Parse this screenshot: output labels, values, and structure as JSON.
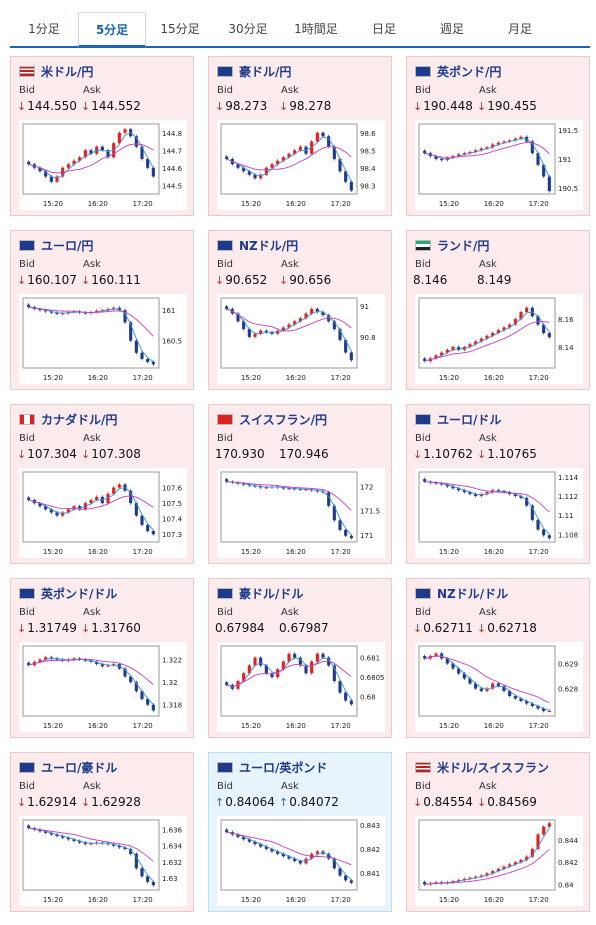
{
  "tabs": [
    "1分足",
    "5分足",
    "15分足",
    "30分足",
    "1時間足",
    "日足",
    "週足",
    "月足"
  ],
  "active_tab": 1,
  "labels": {
    "bid": "Bid",
    "ask": "Ask"
  },
  "colors": {
    "up_candle": "#d22",
    "down_candle": "#1e3a8a",
    "ma_short": "#3a8fd8",
    "ma_long": "#c040c0",
    "accent": "#1a64b8"
  },
  "pairs": [
    {
      "name": "米ドル/円",
      "flag": "us-jp-flag",
      "bid": "144.550",
      "ask": "144.552",
      "dir": "down",
      "yticks": [
        "144.8",
        "144.7",
        "144.6",
        "144.5"
      ],
      "xticks": [
        "15:20",
        "16:20",
        "17:20"
      ]
    },
    {
      "name": "豪ドル/円",
      "flag": "au-jp-flag",
      "bid": "98.273",
      "ask": "98.278",
      "dir": "down",
      "yticks": [
        "98.6",
        "98.5",
        "98.4",
        "98.3"
      ],
      "xticks": [
        "15:20",
        "16:20",
        "17:20"
      ]
    },
    {
      "name": "英ポンド/円",
      "flag": "gb-jp-flag",
      "bid": "190.448",
      "ask": "190.455",
      "dir": "down",
      "yticks": [
        "191.5",
        "191",
        "190.5"
      ],
      "xticks": [
        "15:20",
        "16:20",
        "17:20"
      ]
    },
    {
      "name": "ユーロ/円",
      "flag": "eu-jp-flag",
      "bid": "160.107",
      "ask": "160.111",
      "dir": "down",
      "yticks": [
        "161",
        "160.5"
      ],
      "xticks": [
        "15:20",
        "16:20",
        "17:20"
      ]
    },
    {
      "name": "NZドル/円",
      "flag": "nz-jp-flag",
      "bid": "90.652",
      "ask": "90.656",
      "dir": "down",
      "yticks": [
        "91",
        "90.8"
      ],
      "xticks": [
        "15:20",
        "16:20",
        "17:20"
      ]
    },
    {
      "name": "ランド/円",
      "flag": "za-jp-flag",
      "bid": "8.146",
      "ask": "8.149",
      "dir": "none",
      "yticks": [
        "8.16",
        "8.14"
      ],
      "xticks": [
        "15:20",
        "16:20",
        "17:20"
      ]
    },
    {
      "name": "カナダドル/円",
      "flag": "ca-jp-flag",
      "bid": "107.304",
      "ask": "107.308",
      "dir": "down",
      "yticks": [
        "107.6",
        "107.5",
        "107.4",
        "107.3"
      ],
      "xticks": [
        "15:20",
        "16:20",
        "17:20"
      ]
    },
    {
      "name": "スイスフラン/円",
      "flag": "ch-jp-flag",
      "bid": "170.930",
      "ask": "170.946",
      "dir": "none",
      "yticks": [
        "172",
        "171.5",
        "171"
      ],
      "xticks": [
        "15:20",
        "16:20",
        "17:20"
      ]
    },
    {
      "name": "ユーロ/ドル",
      "flag": "eu-us-flag",
      "bid": "1.10762",
      "ask": "1.10765",
      "dir": "down",
      "yticks": [
        "1.114",
        "1.112",
        "1.11",
        "1.108"
      ],
      "xticks": [
        "15:20",
        "16:20",
        "17:20"
      ]
    },
    {
      "name": "英ポンド/ドル",
      "flag": "gb-us-flag",
      "bid": "1.31749",
      "ask": "1.31760",
      "dir": "down",
      "yticks": [
        "1.322",
        "1.32",
        "1.318"
      ],
      "xticks": [
        "15:20",
        "16:20",
        "17:20"
      ]
    },
    {
      "name": "豪ドル/ドル",
      "flag": "au-us-flag",
      "bid": "0.67984",
      "ask": "0.67987",
      "dir": "none",
      "yticks": [
        "0.681",
        "0.6805",
        "0.68"
      ],
      "xticks": [
        "15:20",
        "16:20",
        "17:20"
      ]
    },
    {
      "name": "NZドル/ドル",
      "flag": "nz-us-flag",
      "bid": "0.62711",
      "ask": "0.62718",
      "dir": "down",
      "yticks": [
        "0.629",
        "0.628"
      ],
      "xticks": [
        "15:20",
        "16:20",
        "17:20"
      ]
    },
    {
      "name": "ユーロ/豪ドル",
      "flag": "eu-au-flag",
      "bid": "1.62914",
      "ask": "1.62928",
      "dir": "down",
      "yticks": [
        "1.636",
        "1.634",
        "1.632",
        "1.63"
      ],
      "xticks": [
        "15:20",
        "16:20",
        "17:20"
      ]
    },
    {
      "name": "ユーロ/英ポンド",
      "flag": "eu-gb-flag",
      "bid": "0.84064",
      "ask": "0.84072",
      "dir": "up",
      "yticks": [
        "0.843",
        "0.842",
        "0.841"
      ],
      "xticks": [
        "15:20",
        "16:20",
        "17:20"
      ]
    },
    {
      "name": "米ドル/スイスフラン",
      "flag": "us-ch-flag",
      "bid": "0.84554",
      "ask": "0.84569",
      "dir": "down",
      "yticks": [
        "0.844",
        "0.842",
        "0.84"
      ],
      "xticks": [
        "15:20",
        "16:20",
        "17:20"
      ]
    }
  ],
  "arrows": {
    "down": "↓",
    "up": "↑"
  },
  "chart_data": [
    {
      "type": "candlestick",
      "pair": "米ドル/円",
      "ylim": [
        144.45,
        144.85
      ],
      "close": [
        144.62,
        144.6,
        144.58,
        144.55,
        144.52,
        144.55,
        144.6,
        144.62,
        144.64,
        144.66,
        144.7,
        144.68,
        144.72,
        144.7,
        144.66,
        144.74,
        144.8,
        144.82,
        144.78,
        144.72,
        144.65,
        144.6,
        144.55
      ]
    },
    {
      "type": "candlestick",
      "pair": "豪ドル/円",
      "ylim": [
        98.25,
        98.65
      ],
      "close": [
        98.45,
        98.42,
        98.4,
        98.38,
        98.36,
        98.34,
        98.36,
        98.4,
        98.42,
        98.44,
        98.46,
        98.48,
        98.5,
        98.52,
        98.48,
        98.55,
        98.6,
        98.58,
        98.52,
        98.45,
        98.38,
        98.32,
        98.27
      ]
    },
    {
      "type": "candlestick",
      "pair": "英ポンド/円",
      "ylim": [
        190.4,
        191.6
      ],
      "close": [
        191.1,
        191.05,
        191.0,
        190.98,
        191.02,
        191.05,
        191.08,
        191.1,
        191.12,
        191.15,
        191.18,
        191.2,
        191.25,
        191.28,
        191.3,
        191.32,
        191.35,
        191.38,
        191.3,
        191.1,
        190.9,
        190.7,
        190.45
      ]
    },
    {
      "type": "candlestick",
      "pair": "ユーロ/円",
      "ylim": [
        160.05,
        161.2
      ],
      "close": [
        161.05,
        161.02,
        161.0,
        160.98,
        160.96,
        160.94,
        160.95,
        160.97,
        160.98,
        160.96,
        160.95,
        160.97,
        160.99,
        161.0,
        161.02,
        161.04,
        161.0,
        160.8,
        160.5,
        160.3,
        160.2,
        160.15,
        160.11
      ]
    },
    {
      "type": "candlestick",
      "pair": "NZドル/円",
      "ylim": [
        90.6,
        91.05
      ],
      "close": [
        90.98,
        90.95,
        90.9,
        90.85,
        90.8,
        90.82,
        90.84,
        90.83,
        90.82,
        90.84,
        90.86,
        90.88,
        90.9,
        90.92,
        90.95,
        90.98,
        90.96,
        90.94,
        90.9,
        90.85,
        90.78,
        90.7,
        90.65
      ]
    },
    {
      "type": "candlestick",
      "pair": "ランド/円",
      "ylim": [
        8.125,
        8.175
      ],
      "close": [
        8.13,
        8.132,
        8.134,
        8.136,
        8.138,
        8.14,
        8.138,
        8.14,
        8.142,
        8.144,
        8.146,
        8.148,
        8.15,
        8.152,
        8.154,
        8.156,
        8.16,
        8.165,
        8.168,
        8.162,
        8.156,
        8.15,
        8.147
      ]
    },
    {
      "type": "candlestick",
      "pair": "カナダドル/円",
      "ylim": [
        107.25,
        107.7
      ],
      "close": [
        107.52,
        107.5,
        107.48,
        107.46,
        107.44,
        107.42,
        107.44,
        107.46,
        107.48,
        107.46,
        107.5,
        107.52,
        107.54,
        107.5,
        107.56,
        107.6,
        107.62,
        107.58,
        107.5,
        107.42,
        107.36,
        107.32,
        107.3
      ]
    },
    {
      "type": "candlestick",
      "pair": "スイスフラン/円",
      "ylim": [
        170.85,
        172.3
      ],
      "close": [
        172.1,
        172.08,
        172.06,
        172.04,
        172.02,
        172.0,
        171.98,
        171.98,
        172.0,
        171.98,
        171.96,
        171.96,
        171.95,
        171.94,
        171.94,
        171.92,
        171.9,
        171.88,
        171.6,
        171.3,
        171.1,
        170.98,
        170.93
      ]
    },
    {
      "type": "candlestick",
      "pair": "ユーロ/ドル",
      "ylim": [
        1.1072,
        1.1145
      ],
      "close": [
        1.1135,
        1.1134,
        1.1133,
        1.1132,
        1.113,
        1.1128,
        1.1126,
        1.1124,
        1.1122,
        1.112,
        1.1122,
        1.1124,
        1.1126,
        1.1125,
        1.1124,
        1.1122,
        1.112,
        1.1118,
        1.111,
        1.1095,
        1.1085,
        1.1079,
        1.1076
      ]
    },
    {
      "type": "candlestick",
      "pair": "英ポンド/ドル",
      "ylim": [
        1.317,
        1.3232
      ],
      "close": [
        1.3215,
        1.3218,
        1.322,
        1.3222,
        1.3221,
        1.322,
        1.3219,
        1.322,
        1.3221,
        1.322,
        1.3219,
        1.3218,
        1.3216,
        1.3214,
        1.3215,
        1.3216,
        1.3212,
        1.3205,
        1.32,
        1.3192,
        1.3185,
        1.318,
        1.3175
      ]
    },
    {
      "type": "candlestick",
      "pair": "豪ドル/ドル",
      "ylim": [
        0.6795,
        0.6813
      ],
      "close": [
        0.6803,
        0.6802,
        0.6804,
        0.6806,
        0.6808,
        0.681,
        0.6808,
        0.6806,
        0.6805,
        0.6807,
        0.6809,
        0.6811,
        0.681,
        0.6808,
        0.6806,
        0.6809,
        0.6811,
        0.681,
        0.6808,
        0.6804,
        0.6801,
        0.6799,
        0.6798
      ]
    },
    {
      "type": "candlestick",
      "pair": "NZドル/ドル",
      "ylim": [
        0.6269,
        0.6297
      ],
      "close": [
        0.6292,
        0.6293,
        0.6294,
        0.6292,
        0.629,
        0.6288,
        0.6286,
        0.6284,
        0.6282,
        0.628,
        0.6279,
        0.628,
        0.6282,
        0.6281,
        0.6279,
        0.6277,
        0.6276,
        0.6275,
        0.6274,
        0.6273,
        0.6272,
        0.6271,
        0.6271
      ]
    },
    {
      "type": "candlestick",
      "pair": "ユーロ/豪ドル",
      "ylim": [
        1.6285,
        1.6372
      ],
      "close": [
        1.6362,
        1.636,
        1.6358,
        1.6356,
        1.6354,
        1.6352,
        1.635,
        1.6348,
        1.6346,
        1.6344,
        1.6342,
        1.6343,
        1.6344,
        1.6343,
        1.6342,
        1.634,
        1.6338,
        1.6336,
        1.633,
        1.6312,
        1.6302,
        1.6295,
        1.6291
      ]
    },
    {
      "type": "candlestick",
      "pair": "ユーロ/英ポンド",
      "ylim": [
        0.8403,
        0.8432
      ],
      "close": [
        0.8427,
        0.8426,
        0.8425,
        0.8424,
        0.8423,
        0.8422,
        0.8421,
        0.842,
        0.8419,
        0.8418,
        0.8417,
        0.8416,
        0.8415,
        0.8414,
        0.8416,
        0.8418,
        0.8419,
        0.8418,
        0.8416,
        0.8412,
        0.8409,
        0.8407,
        0.8406
      ]
    },
    {
      "type": "candlestick",
      "pair": "米ドル/スイスフラン",
      "ylim": [
        0.8395,
        0.8458
      ],
      "close": [
        0.84,
        0.8401,
        0.8402,
        0.8401,
        0.8402,
        0.8403,
        0.8404,
        0.8405,
        0.8406,
        0.8407,
        0.8408,
        0.841,
        0.8412,
        0.8414,
        0.8416,
        0.8418,
        0.842,
        0.8422,
        0.8425,
        0.8432,
        0.8445,
        0.8452,
        0.8455
      ]
    }
  ]
}
